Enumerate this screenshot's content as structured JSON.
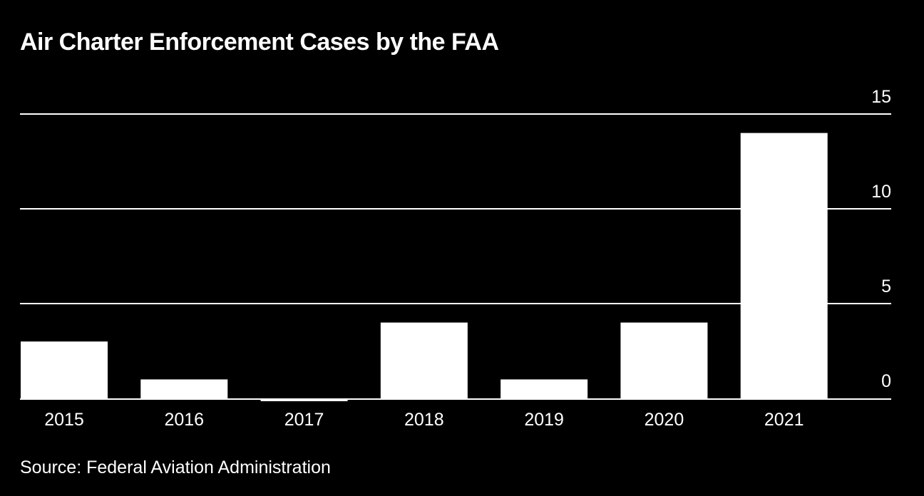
{
  "chart_data": {
    "type": "bar",
    "title": "Air Charter Enforcement Cases by the FAA",
    "categories": [
      "2015",
      "2016",
      "2017",
      "2018",
      "2019",
      "2020",
      "2021"
    ],
    "values": [
      3,
      1,
      0,
      4,
      1,
      4,
      14
    ],
    "y_ticks": [
      0,
      5,
      10,
      15
    ],
    "ylim": [
      0,
      15
    ],
    "xlabel": "",
    "ylabel": "",
    "grid": true,
    "y_axis_side": "right",
    "colors": {
      "background": "#000000",
      "bar": "#ffffff",
      "text": "#ffffff",
      "grid": "#ffffff"
    }
  },
  "source": "Source: Federal Aviation Administration"
}
